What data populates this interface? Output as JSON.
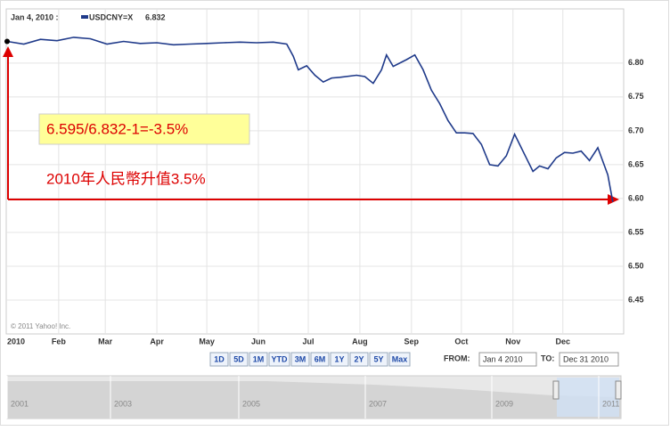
{
  "header": {
    "date": "Jan 4, 2010 :"
  },
  "chart_data": {
    "type": "line",
    "legend_value": "6.832",
    "copyright": "© 2011 Yahoo! Inc.",
    "annotations": [
      "6.595/6.832-1=-3.5%",
      "2010年人民幣升值3.5%"
    ],
    "x": [
      0,
      10,
      20,
      30,
      40,
      50,
      60,
      70,
      80,
      90,
      100,
      110,
      120,
      130,
      140,
      150,
      160,
      168,
      172,
      175,
      180,
      185,
      190,
      195,
      200,
      210,
      215,
      220,
      225,
      228,
      232,
      240,
      245,
      250,
      255,
      260,
      265,
      270,
      275,
      280,
      285,
      290,
      295,
      300,
      305,
      308,
      312,
      316,
      320,
      325,
      330,
      335,
      340,
      345,
      350,
      355,
      358,
      361,
      364
    ],
    "series": [
      {
        "name": "USDCNY=X",
        "color": "#1f3a8a",
        "values": [
          6.832,
          6.828,
          6.835,
          6.833,
          6.838,
          6.836,
          6.828,
          6.832,
          6.829,
          6.83,
          6.827,
          6.828,
          6.829,
          6.83,
          6.831,
          6.83,
          6.831,
          6.828,
          6.81,
          6.79,
          6.796,
          6.782,
          6.772,
          6.778,
          6.779,
          6.782,
          6.78,
          6.77,
          6.79,
          6.812,
          6.795,
          6.805,
          6.812,
          6.79,
          6.76,
          6.74,
          6.715,
          6.697,
          6.697,
          6.696,
          6.68,
          6.65,
          6.648,
          6.663,
          6.695,
          6.68,
          6.66,
          6.64,
          6.648,
          6.644,
          6.66,
          6.668,
          6.667,
          6.67,
          6.656,
          6.675,
          6.655,
          6.635,
          6.595
        ]
      }
    ],
    "xlim": [
      0,
      370
    ],
    "xticks": [
      {
        "value": 0,
        "label": "2010"
      },
      {
        "value": 31,
        "label": "Feb"
      },
      {
        "value": 59,
        "label": "Mar"
      },
      {
        "value": 90,
        "label": "Apr"
      },
      {
        "value": 120,
        "label": "May"
      },
      {
        "value": 151,
        "label": "Jun"
      },
      {
        "value": 181,
        "label": "Jul"
      },
      {
        "value": 212,
        "label": "Aug"
      },
      {
        "value": 243,
        "label": "Sep"
      },
      {
        "value": 273,
        "label": "Oct"
      },
      {
        "value": 304,
        "label": "Nov"
      },
      {
        "value": 334,
        "label": "Dec"
      }
    ],
    "ylim": [
      6.4,
      6.88
    ],
    "yticks": [
      {
        "value": 6.45,
        "label": "6.45"
      },
      {
        "value": 6.5,
        "label": "6.50"
      },
      {
        "value": 6.55,
        "label": "6.55"
      },
      {
        "value": 6.6,
        "label": "6.60"
      },
      {
        "value": 6.65,
        "label": "6.65"
      },
      {
        "value": 6.7,
        "label": "6.70"
      },
      {
        "value": 6.75,
        "label": "6.75"
      },
      {
        "value": 6.8,
        "label": "6.80"
      }
    ],
    "grid": true
  },
  "controls": {
    "ranges": [
      "1D",
      "5D",
      "1M",
      "YTD",
      "3M",
      "6M",
      "1Y",
      "2Y",
      "5Y",
      "Max"
    ],
    "from_label": "FROM:",
    "from": "Jan 4 2010",
    "to_label": "TO:",
    "to": "Dec 31 2010"
  },
  "navigator": {
    "years": [
      "2001",
      "2003",
      "2005",
      "2007",
      "2009",
      "2011"
    ]
  }
}
